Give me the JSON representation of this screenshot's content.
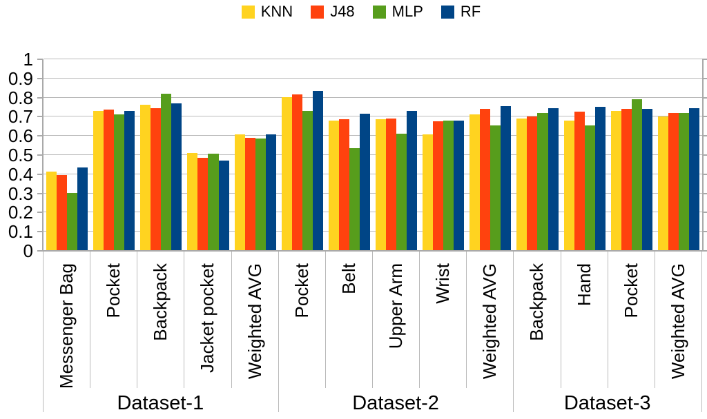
{
  "chart_data": {
    "type": "bar",
    "title": "",
    "legend_position": "top",
    "grid": "horizontal",
    "series": [
      {
        "name": "KNN",
        "color": "#FFD320",
        "values": [
          0.41,
          0.73,
          0.76,
          0.51,
          0.605,
          0.8,
          0.68,
          0.685,
          0.605,
          0.71,
          0.69,
          0.68,
          0.73,
          0.7
        ]
      },
      {
        "name": "J48",
        "color": "#FF420E",
        "values": [
          0.395,
          0.735,
          0.745,
          0.485,
          0.59,
          0.815,
          0.685,
          0.69,
          0.675,
          0.74,
          0.7,
          0.725,
          0.74,
          0.72
        ]
      },
      {
        "name": "MLP",
        "color": "#579D1C",
        "values": [
          0.3,
          0.71,
          0.82,
          0.505,
          0.585,
          0.73,
          0.535,
          0.61,
          0.68,
          0.655,
          0.72,
          0.655,
          0.79,
          0.72
        ]
      },
      {
        "name": "RF",
        "color": "#004586",
        "values": [
          0.435,
          0.73,
          0.77,
          0.47,
          0.605,
          0.835,
          0.715,
          0.73,
          0.68,
          0.755,
          0.745,
          0.75,
          0.74,
          0.745
        ]
      }
    ],
    "categories": [
      "Messenger Bag",
      "Pocket",
      "Backpack",
      "Jacket pocket",
      "Weighted AVG",
      "Pocket",
      "Belt",
      "Upper Arm",
      "Wrist",
      "Weighted AVG",
      "Backpack",
      "Hand",
      "Pocket",
      "Weighted AVG"
    ],
    "category_groups": [
      {
        "label": "Dataset-1",
        "span": 5
      },
      {
        "label": "Dataset-2",
        "span": 5
      },
      {
        "label": "Dataset-3",
        "span": 4
      }
    ],
    "y_axis": {
      "min": 0,
      "max": 1,
      "step": 0.1,
      "tick_labels": [
        "0",
        "0.1",
        "0.2",
        "0.3",
        "0.4",
        "0.5",
        "0.6",
        "0.7",
        "0.8",
        "0.9",
        "1"
      ]
    },
    "colors": {
      "grid_line": "#b9b9b9",
      "axis_line": "#a9a9a9",
      "text": "#000000",
      "background": "#ffffff"
    }
  }
}
